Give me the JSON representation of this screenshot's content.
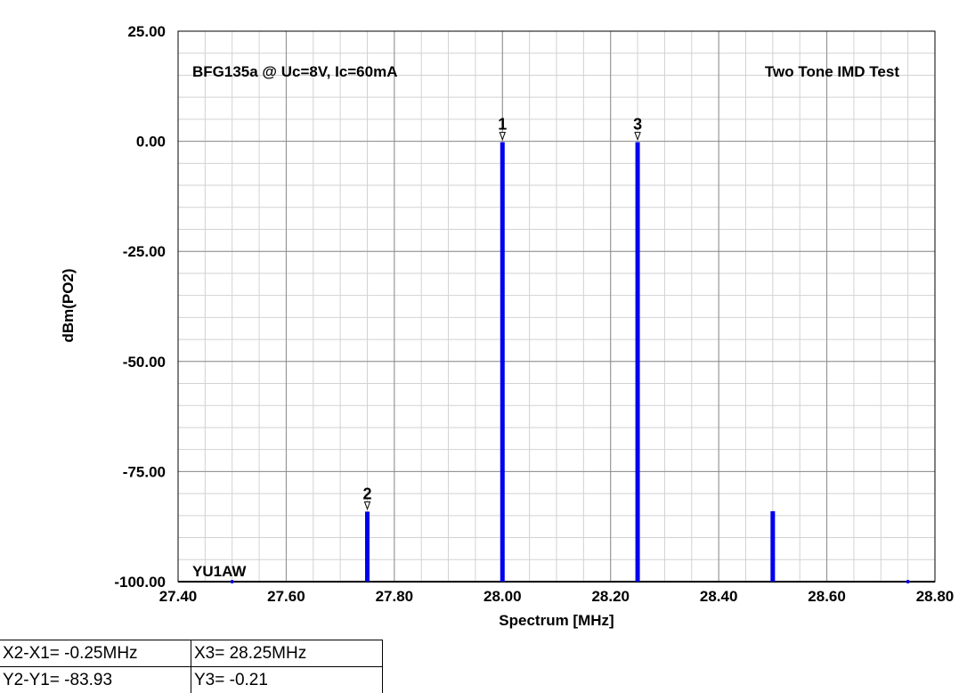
{
  "chart_data": {
    "type": "bar",
    "title": "BFG135a @ Uc=8V, Ic=60mA",
    "annotation_right": "Two Tone IMD Test",
    "annotation_bottom": "YU1AW",
    "xlabel": "Spectrum [MHz]",
    "ylabel": "dBm(PO2)",
    "xlim": [
      27.4,
      28.8
    ],
    "ylim": [
      -100,
      25
    ],
    "x_ticks": [
      "27.40",
      "27.60",
      "27.80",
      "28.00",
      "28.20",
      "28.40",
      "28.60",
      "28.80"
    ],
    "y_ticks": [
      "25.00",
      "0.00",
      "-25.00",
      "-50.00",
      "-75.00",
      "-100.00"
    ],
    "grid": true,
    "series": [
      {
        "color": "#0000ee",
        "points": [
          {
            "x": 27.5,
            "y": -100
          },
          {
            "x": 27.75,
            "y": -84.1
          },
          {
            "x": 28.0,
            "y": -0.2
          },
          {
            "x": 28.25,
            "y": -0.21
          },
          {
            "x": 28.5,
            "y": -84.0
          },
          {
            "x": 28.75,
            "y": -100
          }
        ]
      }
    ],
    "markers": [
      {
        "label": "1",
        "x": 28.0,
        "y": -0.2
      },
      {
        "label": "2",
        "x": 27.75,
        "y": -84.1
      },
      {
        "label": "3",
        "x": 28.25,
        "y": -0.21
      }
    ]
  },
  "readout": {
    "dx": "X2-X1= -0.25MHz",
    "dy": "Y2-Y1= -83.93",
    "x3": "X3= 28.25MHz",
    "y3": "Y3= -0.21"
  }
}
